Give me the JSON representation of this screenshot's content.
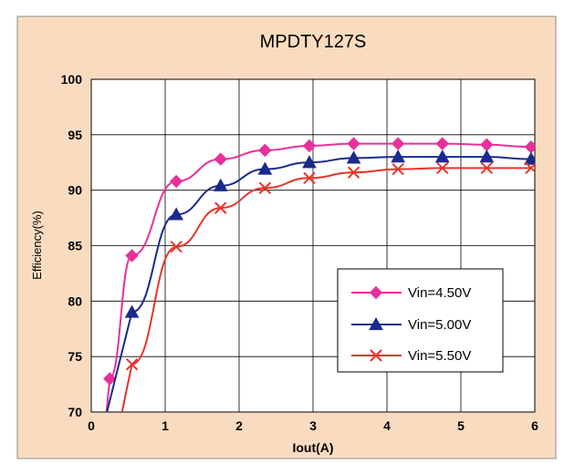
{
  "chart_data": {
    "type": "line",
    "title": "MPDTY127S",
    "xlabel": "Iout(A)",
    "ylabel": "Efficiency(%)",
    "xlim": [
      0,
      6
    ],
    "ylim": [
      70,
      100
    ],
    "x_ticks": [
      "0",
      "1",
      "2",
      "3",
      "4",
      "5",
      "6"
    ],
    "y_ticks": [
      "70",
      "75",
      "80",
      "85",
      "90",
      "95",
      "100"
    ],
    "grid": true,
    "legend_position": "lower-right",
    "colors": {
      "outer_background": "#F9DCC0",
      "plot_background": "#FFFFFF",
      "grid": "#000000"
    },
    "series": [
      {
        "name": "Vin=4.50V",
        "color": "#E8309A",
        "marker": "diamond",
        "x": [
          0.25,
          0.55,
          1.15,
          1.75,
          2.35,
          2.95,
          3.55,
          4.15,
          4.75,
          5.35,
          5.95
        ],
        "y": [
          73.0,
          84.1,
          90.8,
          92.8,
          93.6,
          94.0,
          94.2,
          94.2,
          94.2,
          94.1,
          93.9
        ]
      },
      {
        "name": "Vin=5.00V",
        "color": "#1A2B8C",
        "marker": "triangle",
        "x": [
          0.55,
          1.15,
          1.75,
          2.35,
          2.95,
          3.55,
          4.15,
          4.75,
          5.35,
          5.95
        ],
        "y": [
          79.0,
          87.8,
          90.4,
          91.9,
          92.5,
          92.9,
          93.0,
          93.0,
          93.0,
          92.8
        ]
      },
      {
        "name": "Vin=5.50V",
        "color": "#E8342C",
        "marker": "x",
        "x": [
          0.55,
          1.15,
          1.75,
          2.35,
          2.95,
          3.55,
          4.15,
          4.75,
          5.35,
          5.95
        ],
        "y": [
          74.3,
          84.9,
          88.4,
          90.2,
          91.1,
          91.6,
          91.9,
          92.0,
          92.0,
          92.0
        ]
      }
    ]
  }
}
